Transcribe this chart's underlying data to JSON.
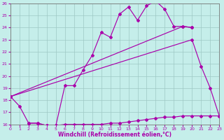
{
  "xlabel": "Windchill (Refroidissement éolien,°C)",
  "xlim": [
    0,
    23
  ],
  "ylim": [
    16,
    26
  ],
  "xticks": [
    0,
    1,
    2,
    3,
    4,
    5,
    6,
    7,
    8,
    9,
    10,
    11,
    12,
    13,
    14,
    15,
    16,
    17,
    18,
    19,
    20,
    21,
    22,
    23
  ],
  "yticks": [
    16,
    17,
    18,
    19,
    20,
    21,
    22,
    23,
    24,
    25,
    26
  ],
  "bg_color": "#c5eeea",
  "grid_color": "#9ec8c4",
  "line_color": "#aa00aa",
  "line1_x": [
    0,
    1,
    2,
    3,
    4,
    5,
    6,
    7,
    8,
    9,
    10,
    11,
    12,
    13,
    14,
    15,
    16,
    17,
    18,
    19,
    20
  ],
  "line1_y": [
    18.3,
    17.5,
    16.1,
    16.1,
    15.9,
    15.9,
    19.2,
    19.2,
    20.5,
    21.7,
    23.6,
    23.2,
    25.1,
    25.7,
    24.6,
    25.8,
    26.2,
    25.5,
    24.1,
    24.1,
    24.0
  ],
  "line2_x": [
    2,
    3,
    4,
    5,
    6,
    7,
    8,
    9,
    10,
    11,
    12,
    13,
    14,
    15,
    16,
    17,
    18,
    19,
    20,
    21,
    22,
    23
  ],
  "line2_y": [
    16.1,
    16.1,
    15.9,
    15.9,
    16.0,
    16.0,
    16.0,
    16.0,
    16.0,
    16.1,
    16.1,
    16.2,
    16.3,
    16.4,
    16.5,
    16.6,
    16.6,
    16.7,
    16.7,
    16.7,
    16.7,
    16.7
  ],
  "line3_x": [
    0,
    20,
    21,
    22,
    23
  ],
  "line3_y": [
    18.3,
    23.0,
    20.8,
    19.0,
    16.7
  ],
  "line4_x": [
    0,
    19,
    20
  ],
  "line4_y": [
    18.3,
    24.1,
    24.0
  ]
}
